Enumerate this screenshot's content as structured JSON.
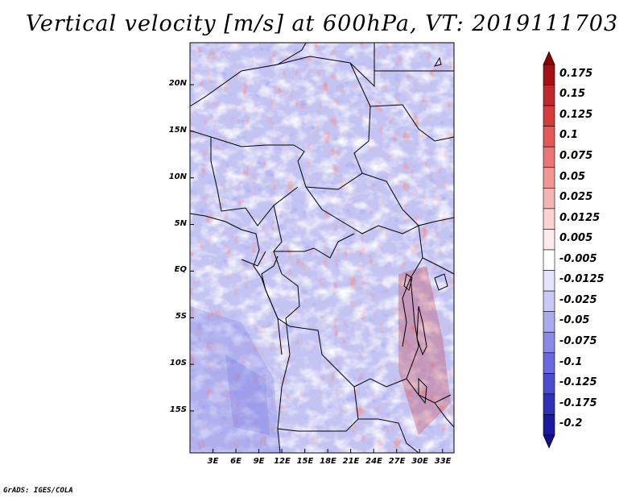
{
  "title": "Vertical velocity [m/s] at 600hPa, VT: 2019111703",
  "map": {
    "lat_labels": [
      "20N",
      "15N",
      "10N",
      "5N",
      "EQ",
      "5S",
      "10S",
      "15S"
    ],
    "lat_values": [
      20,
      15,
      10,
      5,
      0,
      -5,
      -10,
      -15
    ],
    "lon_labels": [
      "3E",
      "6E",
      "9E",
      "12E",
      "15E",
      "18E",
      "21E",
      "24E",
      "27E",
      "30E",
      "33E"
    ],
    "lon_values": [
      3,
      6,
      9,
      12,
      15,
      18,
      21,
      24,
      27,
      30,
      33
    ],
    "lon_range": [
      0,
      34.5
    ],
    "lat_range": [
      -19.5,
      24.5
    ]
  },
  "colorbar": {
    "labels": [
      "0.175",
      "0.15",
      "0.125",
      "0.1",
      "0.075",
      "0.05",
      "0.025",
      "0.0125",
      "0.005",
      "-0.005",
      "-0.0125",
      "-0.025",
      "-0.05",
      "-0.075",
      "-0.1",
      "-0.125",
      "-0.175",
      "-0.2"
    ],
    "colors": [
      "#a50f15",
      "#c1272d",
      "#d73c3c",
      "#e45858",
      "#ec7676",
      "#f29595",
      "#f6b3b3",
      "#fad2d2",
      "#fdeaea",
      "#ffffff",
      "#e3e3fb",
      "#c9c9f5",
      "#aaaaf0",
      "#8a8ae8",
      "#6a6ade",
      "#4c4cd0",
      "#3030b8",
      "#1a1aa0"
    ]
  },
  "credit": "GrADS: IGES/COLA"
}
